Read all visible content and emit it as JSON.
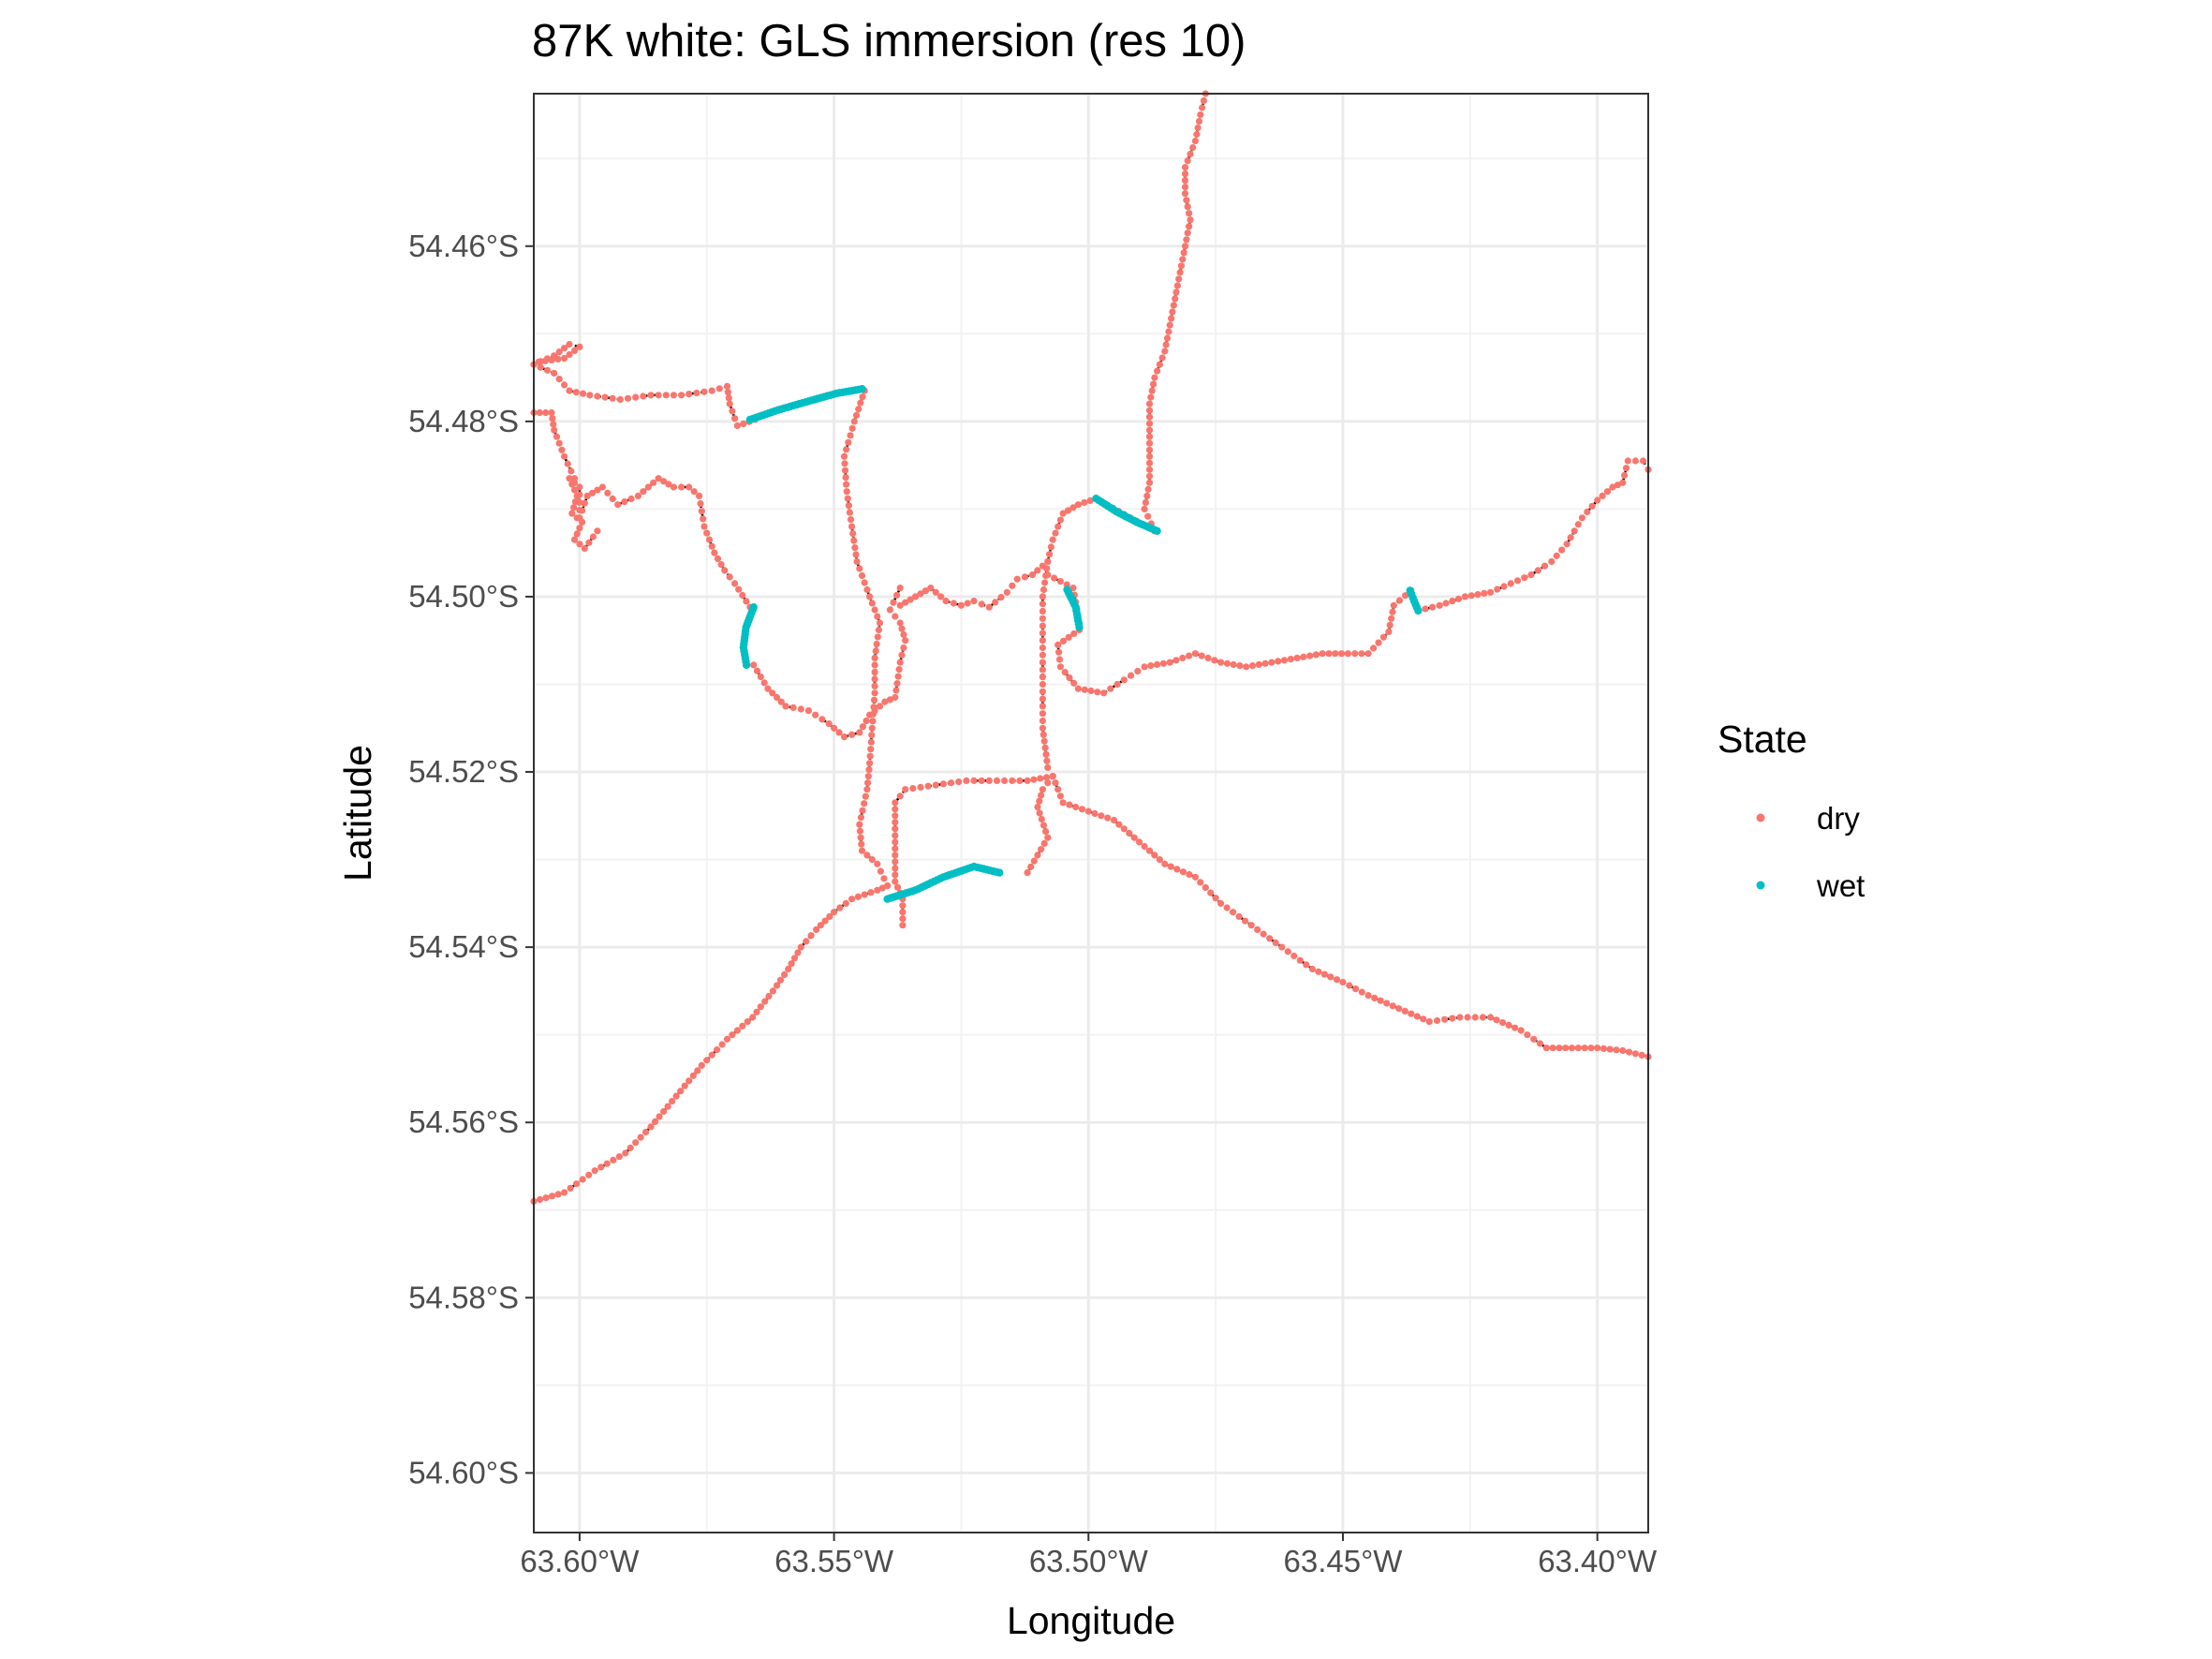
{
  "chart_data": {
    "type": "scatter",
    "title": "87K white: GLS immersion (res 10)",
    "xlabel": "Longitude",
    "ylabel": "Latitude",
    "xlim": [
      -63.609,
      -63.39
    ],
    "ylim": [
      -54.6068,
      -54.4426
    ],
    "x_ticks": [
      {
        "value": -63.6,
        "label": "63.60°W"
      },
      {
        "value": -63.55,
        "label": "63.55°W"
      },
      {
        "value": -63.5,
        "label": "63.50°W"
      },
      {
        "value": -63.45,
        "label": "63.45°W"
      },
      {
        "value": -63.4,
        "label": "63.40°W"
      }
    ],
    "y_ticks": [
      {
        "value": -54.46,
        "label": "54.46°S"
      },
      {
        "value": -54.48,
        "label": "54.48°S"
      },
      {
        "value": -54.5,
        "label": "54.50°S"
      },
      {
        "value": -54.52,
        "label": "54.52°S"
      },
      {
        "value": -54.54,
        "label": "54.54°S"
      },
      {
        "value": -54.56,
        "label": "54.56°S"
      },
      {
        "value": -54.58,
        "label": "54.58°S"
      },
      {
        "value": -54.6,
        "label": "54.60°S"
      }
    ],
    "grid": true,
    "legend": {
      "title": "State",
      "position": "right",
      "entries": [
        {
          "label": "dry",
          "color": "#F8766D"
        },
        {
          "label": "wet",
          "color": "#00BFC4"
        }
      ]
    },
    "track_color": "#000000",
    "series": [
      {
        "name": "dry",
        "color": "#F8766D",
        "paths": [
          [
            [
              -63.477,
              -54.4426
            ],
            [
              -63.478,
              -54.445
            ],
            [
              -63.479,
              -54.448
            ],
            [
              -63.481,
              -54.451
            ],
            [
              -63.481,
              -54.454
            ],
            [
              -63.48,
              -54.457
            ],
            [
              -63.481,
              -54.46
            ],
            [
              -63.482,
              -54.463
            ],
            [
              -63.483,
              -54.466
            ],
            [
              -63.484,
              -54.469
            ],
            [
              -63.485,
              -54.472
            ],
            [
              -63.487,
              -54.475
            ],
            [
              -63.488,
              -54.478
            ],
            [
              -63.488,
              -54.481
            ],
            [
              -63.488,
              -54.484
            ],
            [
              -63.488,
              -54.487
            ],
            [
              -63.489,
              -54.49
            ],
            [
              -63.487,
              -54.4925
            ]
          ],
          [
            [
              -63.487,
              -54.4925
            ],
            [
              -63.493,
              -54.4906
            ],
            [
              -63.4985,
              -54.4888
            ],
            [
              -63.502,
              -54.4895
            ],
            [
              -63.505,
              -54.4905
            ],
            [
              -63.507,
              -54.4935
            ],
            [
              -63.508,
              -54.496
            ],
            [
              -63.511,
              -54.4975
            ],
            [
              -63.514,
              -54.498
            ],
            [
              -63.516,
              -54.4995
            ],
            [
              -63.5195,
              -54.5012
            ],
            [
              -63.5225,
              -54.5005
            ],
            [
              -63.525,
              -54.501
            ],
            [
              -63.528,
              -54.5005
            ],
            [
              -63.531,
              -54.499
            ],
            [
              -63.534,
              -54.5
            ],
            [
              -63.537,
              -54.501
            ]
          ],
          [
            [
              -63.508,
              -54.496
            ],
            [
              -63.509,
              -54.5
            ],
            [
              -63.509,
              -54.505
            ],
            [
              -63.509,
              -54.51
            ],
            [
              -63.509,
              -54.515
            ],
            [
              -63.508,
              -54.5195
            ],
            [
              -63.507,
              -54.5205
            ],
            [
              -63.509,
              -54.522
            ],
            [
              -63.51,
              -54.524
            ],
            [
              -63.508,
              -54.5275
            ],
            [
              -63.512,
              -54.5315
            ]
          ],
          [
            [
              -63.507,
              -54.5205
            ],
            [
              -63.512,
              -54.521
            ],
            [
              -63.518,
              -54.521
            ],
            [
              -63.524,
              -54.521
            ],
            [
              -63.53,
              -54.5215
            ],
            [
              -63.536,
              -54.522
            ],
            [
              -63.538,
              -54.5235
            ],
            [
              -63.538,
              -54.528
            ],
            [
              -63.538,
              -54.5325
            ],
            [
              -63.5365,
              -54.5345
            ],
            [
              -63.5365,
              -54.5375
            ]
          ],
          [
            [
              -63.508,
              -54.4975
            ],
            [
              -63.503,
              -54.499
            ],
            [
              -63.5018,
              -54.503
            ]
          ],
          [
            [
              -63.5018,
              -54.5038
            ],
            [
              -63.506,
              -54.5055
            ],
            [
              -63.5055,
              -54.508
            ],
            [
              -63.502,
              -54.5105
            ],
            [
              -63.497,
              -54.511
            ],
            [
              -63.493,
              -54.5095
            ],
            [
              -63.489,
              -54.508
            ],
            [
              -63.484,
              -54.5075
            ],
            [
              -63.479,
              -54.5065
            ],
            [
              -63.474,
              -54.5075
            ],
            [
              -63.469,
              -54.508
            ],
            [
              -63.464,
              -54.5075
            ],
            [
              -63.459,
              -54.507
            ],
            [
              -63.454,
              -54.5065
            ],
            [
              -63.449,
              -54.5065
            ],
            [
              -63.445,
              -54.5065
            ],
            [
              -63.441,
              -54.504
            ],
            [
              -63.44,
              -54.501
            ],
            [
              -63.4366,
              -54.4993
            ]
          ],
          [
            [
              -63.4352,
              -54.5016
            ],
            [
              -63.431,
              -54.501
            ],
            [
              -63.426,
              -54.5
            ],
            [
              -63.421,
              -54.4995
            ],
            [
              -63.417,
              -54.4985
            ],
            [
              -63.413,
              -54.4975
            ],
            [
              -63.409,
              -54.496
            ],
            [
              -63.406,
              -54.494
            ],
            [
              -63.403,
              -54.491
            ],
            [
              -63.4,
              -54.489
            ],
            [
              -63.397,
              -54.4875
            ],
            [
              -63.395,
              -54.487
            ],
            [
              -63.394,
              -54.4845
            ],
            [
              -63.391,
              -54.4845
            ],
            [
              -63.39,
              -54.4855
            ]
          ],
          [
            [
              -63.507,
              -54.5205
            ],
            [
              -63.505,
              -54.5235
            ],
            [
              -63.5,
              -54.5245
            ],
            [
              -63.495,
              -54.5255
            ],
            [
              -63.49,
              -54.528
            ],
            [
              -63.485,
              -54.5305
            ],
            [
              -63.479,
              -54.532
            ],
            [
              -63.474,
              -54.535
            ],
            [
              -63.468,
              -54.5375
            ],
            [
              -63.462,
              -54.54
            ],
            [
              -63.456,
              -54.5425
            ],
            [
              -63.45,
              -54.544
            ],
            [
              -63.445,
              -54.5455
            ],
            [
              -63.439,
              -54.547
            ],
            [
              -63.433,
              -54.5485
            ],
            [
              -63.427,
              -54.548
            ],
            [
              -63.421,
              -54.548
            ],
            [
              -63.415,
              -54.5495
            ],
            [
              -63.41,
              -54.5515
            ],
            [
              -63.405,
              -54.5515
            ],
            [
              -63.4,
              -54.5515
            ],
            [
              -63.395,
              -54.5518
            ],
            [
              -63.39,
              -54.5525
            ]
          ],
          [
            [
              -63.544,
              -54.4765
            ],
            [
              -63.546,
              -54.48
            ],
            [
              -63.548,
              -54.484
            ],
            [
              -63.5475,
              -54.488
            ],
            [
              -63.5465,
              -54.492
            ],
            [
              -63.5455,
              -54.496
            ],
            [
              -63.543,
              -54.5
            ],
            [
              -63.541,
              -54.503
            ],
            [
              -63.542,
              -54.507
            ],
            [
              -63.542,
              -54.511
            ],
            [
              -63.5425,
              -54.515
            ],
            [
              -63.543,
              -54.519
            ],
            [
              -63.5435,
              -54.522
            ],
            [
              -63.545,
              -54.526
            ],
            [
              -63.5445,
              -54.529
            ],
            [
              -63.5415,
              -54.5305
            ],
            [
              -63.5395,
              -54.533
            ]
          ],
          [
            [
              -63.5395,
              -54.533
            ],
            [
              -63.5415,
              -54.5335
            ],
            [
              -63.5465,
              -54.5345
            ],
            [
              -63.55,
              -54.536
            ],
            [
              -63.5535,
              -54.538
            ],
            [
              -63.5565,
              -54.54
            ],
            [
              -63.559,
              -54.5425
            ],
            [
              -63.562,
              -54.545
            ],
            [
              -63.566,
              -54.548
            ],
            [
              -63.571,
              -54.5505
            ],
            [
              -63.576,
              -54.5535
            ],
            [
              -63.581,
              -54.557
            ],
            [
              -63.586,
              -54.5605
            ],
            [
              -63.591,
              -54.5635
            ],
            [
              -63.597,
              -54.5655
            ],
            [
              -63.603,
              -54.568
            ],
            [
              -63.609,
              -54.569
            ]
          ],
          [
            [
              -63.5658,
              -54.5078
            ],
            [
              -63.563,
              -54.5105
            ],
            [
              -63.5595,
              -54.5125
            ],
            [
              -63.555,
              -54.513
            ],
            [
              -63.551,
              -54.5145
            ],
            [
              -63.548,
              -54.516
            ],
            [
              -63.545,
              -54.5155
            ],
            [
              -63.543,
              -54.5135
            ],
            [
              -63.54,
              -54.512
            ],
            [
              -63.538,
              -54.5115
            ],
            [
              -63.537,
              -54.5075
            ],
            [
              -63.536,
              -54.505
            ],
            [
              -63.537,
              -54.503
            ],
            [
              -63.539,
              -54.5015
            ],
            [
              -63.537,
              -54.499
            ]
          ],
          [
            [
              -63.5665,
              -54.5012
            ],
            [
              -63.5695,
              -54.4985
            ],
            [
              -63.5715,
              -54.497
            ],
            [
              -63.5735,
              -54.495
            ],
            [
              -63.5755,
              -54.492
            ],
            [
              -63.5765,
              -54.4885
            ],
            [
              -63.5785,
              -54.4875
            ],
            [
              -63.5815,
              -54.4875
            ],
            [
              -63.5845,
              -54.4865
            ],
            [
              -63.5885,
              -54.4885
            ],
            [
              -63.5925,
              -54.4895
            ],
            [
              -63.5955,
              -54.4875
            ],
            [
              -63.5985,
              -54.4885
            ],
            [
              -63.6,
              -54.491
            ],
            [
              -63.6,
              -54.4875
            ],
            [
              -63.602,
              -54.4865
            ],
            [
              -63.6005,
              -54.4885
            ],
            [
              -63.6015,
              -54.4905
            ],
            [
              -63.5995,
              -54.4915
            ],
            [
              -63.601,
              -54.4935
            ],
            [
              -63.599,
              -54.4945
            ],
            [
              -63.5965,
              -54.4925
            ]
          ],
          [
            [
              -63.601,
              -54.4865
            ],
            [
              -63.603,
              -54.484
            ],
            [
              -63.605,
              -54.481
            ],
            [
              -63.6055,
              -54.479
            ],
            [
              -63.609,
              -54.479
            ]
          ],
          [
            [
              -63.5655,
              -54.4798
            ],
            [
              -63.569,
              -54.4805
            ],
            [
              -63.5705,
              -54.478
            ],
            [
              -63.571,
              -54.476
            ],
            [
              -63.574,
              -54.4765
            ],
            [
              -63.58,
              -54.477
            ],
            [
              -63.586,
              -54.477
            ],
            [
              -63.592,
              -54.4775
            ],
            [
              -63.598,
              -54.477
            ],
            [
              -63.602,
              -54.4765
            ],
            [
              -63.605,
              -54.4745
            ],
            [
              -63.609,
              -54.4735
            ]
          ],
          [
            [
              -63.609,
              -54.4735
            ],
            [
              -63.605,
              -54.4725
            ],
            [
              -63.602,
              -54.4712
            ],
            [
              -63.6,
              -54.4715
            ],
            [
              -63.603,
              -54.4728
            ],
            [
              -63.608,
              -54.4732
            ]
          ]
        ]
      },
      {
        "name": "wet",
        "color": "#00BFC4",
        "paths": [
          [
            [
              -63.5665,
              -54.4798
            ],
            [
              -63.561,
              -54.4787
            ],
            [
              -63.555,
              -54.4777
            ],
            [
              -63.5495,
              -54.4768
            ],
            [
              -63.5445,
              -54.4763
            ]
          ],
          [
            [
              -63.4985,
              -54.4888
            ],
            [
              -63.4945,
              -54.4903
            ],
            [
              -63.4905,
              -54.4915
            ],
            [
              -63.4865,
              -54.4925
            ]
          ],
          [
            [
              -63.5658,
              -54.5012
            ],
            [
              -63.5673,
              -54.5035
            ],
            [
              -63.5678,
              -54.5058
            ],
            [
              -63.5672,
              -54.5078
            ]
          ],
          [
            [
              -63.5042,
              -54.4992
            ],
            [
              -63.5025,
              -54.5012
            ],
            [
              -63.5018,
              -54.5035
            ]
          ],
          [
            [
              -63.4368,
              -54.4993
            ],
            [
              -63.436,
              -54.5005
            ],
            [
              -63.4352,
              -54.5016
            ]
          ],
          [
            [
              -63.5395,
              -54.5345
            ],
            [
              -63.534,
              -54.5335
            ],
            [
              -63.5285,
              -54.532
            ],
            [
              -63.5225,
              -54.5308
            ],
            [
              -63.5175,
              -54.5315
            ]
          ]
        ]
      }
    ]
  }
}
